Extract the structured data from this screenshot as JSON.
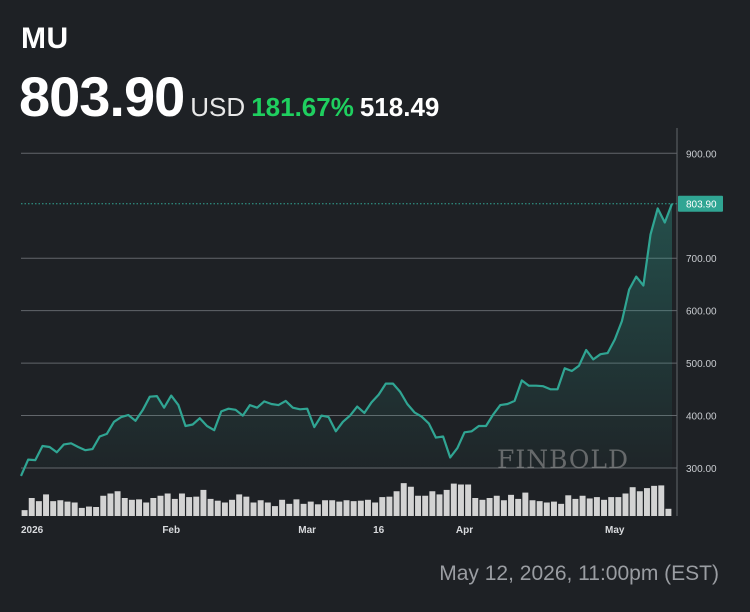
{
  "header": {
    "ticker": "MU",
    "price": "803.90",
    "currency": "USD",
    "change_pct": "181.67%",
    "change_abs": "518.49"
  },
  "footer": {
    "timestamp": "May 12, 2026, 11:00pm (EST)"
  },
  "watermark": "FINBOLD",
  "colors": {
    "line": "#30a593",
    "positive": "#1fcf5f",
    "volume": "#d3d3d3",
    "grid": "#62666b",
    "background": "#1e2125"
  },
  "chart_data": {
    "type": "area",
    "title": "",
    "xlabel": "",
    "ylabel": "",
    "ylim": [
      200,
      950
    ],
    "y_ticks": [
      "900.00",
      "700.00",
      "600.00",
      "500.00",
      "400.00",
      "300.00"
    ],
    "x_ticks": [
      {
        "label": "2026",
        "index": 0
      },
      {
        "label": "Feb",
        "index": 21
      },
      {
        "label": "Mar",
        "index": 40
      },
      {
        "label": "16",
        "index": 50
      },
      {
        "label": "Apr",
        "index": 62
      },
      {
        "label": "May",
        "index": 83
      }
    ],
    "last_value_label": "803.90",
    "last_value": 803.9,
    "grid": true,
    "series": [
      {
        "values": [
          285,
          316,
          315,
          342,
          340,
          330,
          345,
          347,
          340,
          334,
          336,
          360,
          365,
          388,
          397,
          401,
          390,
          410,
          436,
          437,
          415,
          438,
          420,
          380,
          383,
          395,
          380,
          372,
          408,
          413,
          411,
          400,
          420,
          415,
          427,
          422,
          420,
          428,
          415,
          412,
          413,
          378,
          400,
          397,
          370,
          388,
          400,
          417,
          405,
          425,
          440,
          461,
          461,
          445,
          422,
          406,
          398,
          385,
          358,
          360,
          320,
          338,
          368,
          370,
          380,
          380,
          402,
          420,
          422,
          428,
          467,
          457,
          457,
          456,
          450,
          450,
          490,
          485,
          495,
          525,
          507,
          517,
          519,
          545,
          580,
          640,
          665,
          648,
          745,
          795,
          768,
          803.9
        ]
      }
    ],
    "volume": [
      13,
      40,
      33,
      48,
      33,
      35,
      32,
      30,
      18,
      21,
      20,
      45,
      50,
      55,
      40,
      36,
      37,
      30,
      40,
      45,
      50,
      38,
      50,
      42,
      43,
      58,
      38,
      34,
      30,
      36,
      48,
      43,
      30,
      35,
      30,
      22,
      36,
      27,
      37,
      27,
      32,
      26,
      35,
      35,
      32,
      35,
      33,
      34,
      36,
      30,
      42,
      43,
      55,
      73,
      65,
      45,
      45,
      55,
      48,
      58,
      72,
      70,
      70,
      40,
      36,
      40,
      45,
      35,
      47,
      38,
      52,
      35,
      33,
      30,
      32,
      27,
      46,
      38,
      45,
      39,
      42,
      36,
      42,
      42,
      50,
      64,
      55,
      62,
      67,
      68,
      16
    ]
  }
}
